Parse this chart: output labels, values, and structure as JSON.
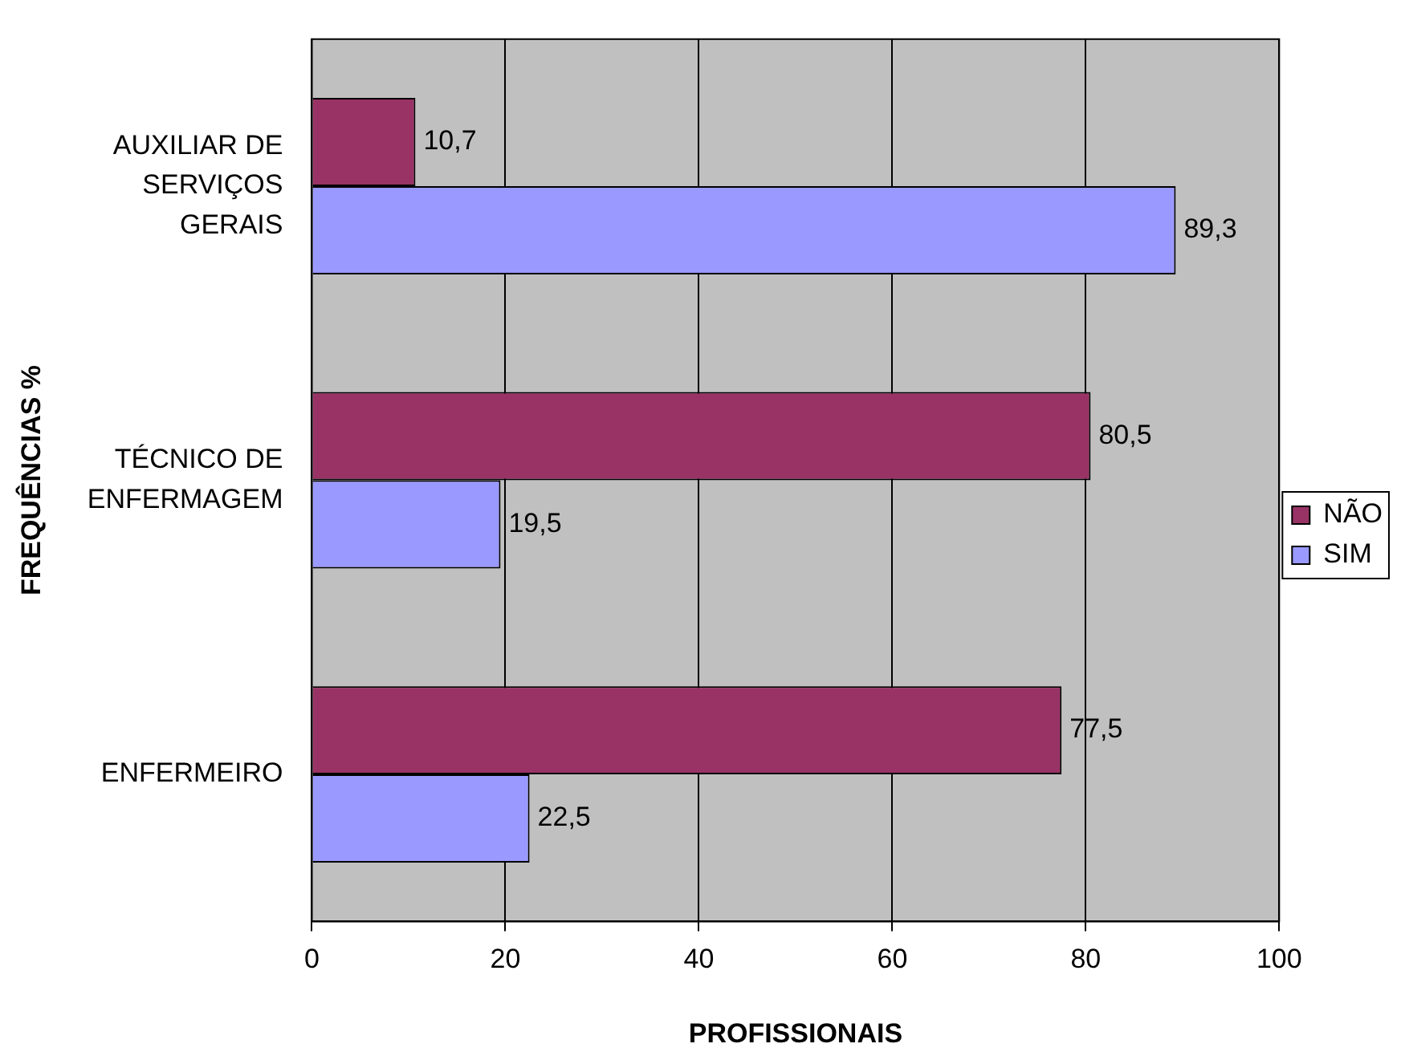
{
  "chart_data": {
    "type": "bar",
    "orientation": "horizontal",
    "categories": [
      "AUXILIAR DE SERVIÇOS GERAIS",
      "TÉCNICO DE ENFERMAGEM",
      "ENFERMEIRO"
    ],
    "series": [
      {
        "name": "NÃO",
        "color": "#993366",
        "values": [
          10.7,
          80.5,
          77.5
        ],
        "value_labels": [
          "10,7",
          "80,5",
          "77,5"
        ]
      },
      {
        "name": "SIM",
        "color": "#9999ff",
        "values": [
          89.3,
          19.5,
          22.5
        ],
        "value_labels": [
          "89,3",
          "19,5",
          "22,5"
        ]
      }
    ],
    "xlabel": "PROFISSIONAIS",
    "ylabel": "FREQUÊNCIAS %",
    "xlim": [
      0,
      100
    ],
    "xticks": [
      0,
      20,
      40,
      60,
      80,
      100
    ],
    "grid": "x",
    "legend": "right"
  }
}
